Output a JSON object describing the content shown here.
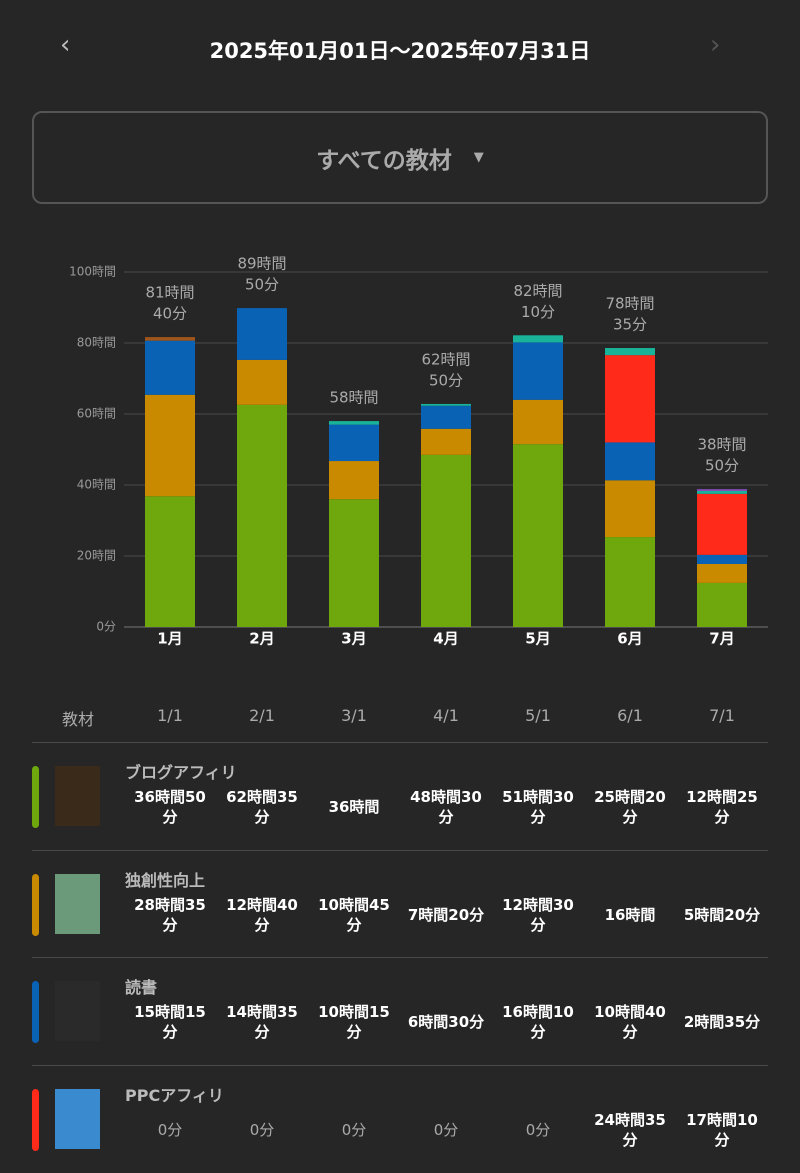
{
  "header": {
    "date_range": "2025年01月01日〜2025年07月31日",
    "filter": "すべての教材"
  },
  "chart_data": {
    "type": "stacked_bar",
    "categories": [
      "1月",
      "2月",
      "3月",
      "4月",
      "5月",
      "6月",
      "7月"
    ],
    "ylim": [
      0,
      100
    ],
    "yticks": [
      {
        "value": 0,
        "label": "0分"
      },
      {
        "value": 20,
        "label": "20時間"
      },
      {
        "value": 40,
        "label": "40時間"
      },
      {
        "value": 60,
        "label": "60時間"
      },
      {
        "value": 80,
        "label": "80時間"
      },
      {
        "value": 100,
        "label": "100時間"
      }
    ],
    "grid": true,
    "total_labels": [
      [
        "81時間",
        "40分"
      ],
      [
        "89時間",
        "50分"
      ],
      [
        "58時間"
      ],
      [
        "62時間",
        "50分"
      ],
      [
        "82時間",
        "10分"
      ],
      [
        "78時間",
        "35分"
      ],
      [
        "38時間",
        "50分"
      ]
    ],
    "series": [
      {
        "name": "ブログアフィリ",
        "color": "#6fa80c",
        "values": [
          36.83,
          62.58,
          36,
          48.5,
          51.5,
          25.33,
          12.42
        ],
        "value_labels": [
          "36時間50分",
          "62時間35分",
          "36時間",
          "48時間30分",
          "51時間30分",
          "25時間20分",
          "12時間25分"
        ]
      },
      {
        "name": "独創性向上",
        "color": "#c98a00",
        "values": [
          28.58,
          12.67,
          10.75,
          7.33,
          12.5,
          16,
          5.33
        ],
        "value_labels": [
          "28時間35分",
          "12時間40分",
          "10時間45分",
          "7時間20分",
          "12時間30分",
          "16時間",
          "5時間20分"
        ]
      },
      {
        "name": "読書",
        "color": "#0a62b5",
        "values": [
          15.25,
          14.58,
          10.25,
          6.5,
          16.17,
          10.67,
          2.58
        ],
        "value_labels": [
          "15時間15分",
          "14時間35分",
          "10時間15分",
          "6時間30分",
          "16時間10分",
          "10時間40分",
          "2時間35分"
        ]
      },
      {
        "name": "PPCアフィリ",
        "color": "#ff2a1a",
        "values": [
          0,
          0,
          0,
          0,
          0,
          24.58,
          17.17
        ],
        "value_labels": [
          "0分",
          "0分",
          "0分",
          "0分",
          "0分",
          "24時間35分",
          "17時間10分"
        ]
      },
      {
        "color": "#a0561a",
        "values": [
          1,
          0,
          0,
          0,
          0,
          0,
          0
        ]
      },
      {
        "color": "#19b39a",
        "values": [
          0,
          0,
          1,
          0.5,
          2,
          2,
          0.83
        ]
      },
      {
        "color": "#8a4fc0",
        "values": [
          0,
          0,
          0,
          0,
          0,
          0,
          0.5
        ]
      }
    ]
  },
  "table": {
    "header": "教材",
    "columns": [
      "1/1",
      "2/1",
      "3/1",
      "4/1",
      "5/1",
      "6/1",
      "7/1"
    ]
  }
}
